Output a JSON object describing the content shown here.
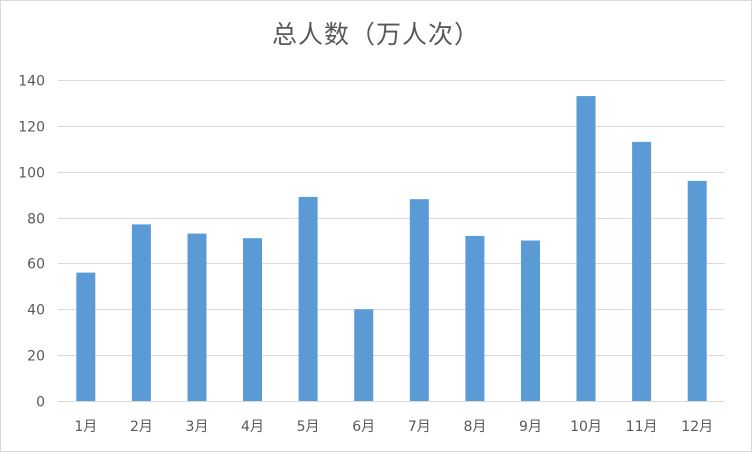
{
  "chart_data": {
    "type": "bar",
    "title": "总人数（万人次）",
    "xlabel": "",
    "ylabel": "",
    "categories": [
      "1月",
      "2月",
      "3月",
      "4月",
      "5月",
      "6月",
      "7月",
      "8月",
      "9月",
      "10月",
      "11月",
      "12月"
    ],
    "values": [
      56,
      77,
      73,
      71,
      89,
      40,
      88,
      72,
      70,
      133,
      113,
      96
    ],
    "ylim": [
      0,
      140
    ],
    "yticks": [
      0,
      20,
      40,
      60,
      80,
      100,
      120,
      140
    ],
    "grid": true,
    "legend": "none",
    "bar_color": "#5b9bd5",
    "grid_color": "#d9d9d9"
  }
}
